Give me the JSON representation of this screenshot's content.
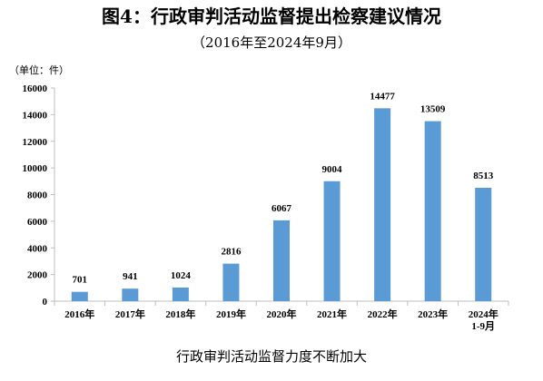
{
  "chart_data": {
    "type": "bar",
    "title": "图4：行政审判活动监督提出检察建议情况",
    "subtitle": "（2016年至2024年9月）",
    "unit_label": "（单位：件）",
    "caption": "行政审判活动监督力度不断加大",
    "categories": [
      "2016年",
      "2017年",
      "2018年",
      "2019年",
      "2020年",
      "2021年",
      "2022年",
      "2023年",
      "2024年\n1-9月"
    ],
    "values": [
      701,
      941,
      1024,
      2816,
      6067,
      9004,
      14477,
      13509,
      8513
    ],
    "ylim": [
      0,
      16000
    ],
    "yticks": [
      0,
      2000,
      4000,
      6000,
      8000,
      10000,
      12000,
      14000,
      16000
    ],
    "grid": false,
    "bar_color": "#5b9bd5"
  }
}
